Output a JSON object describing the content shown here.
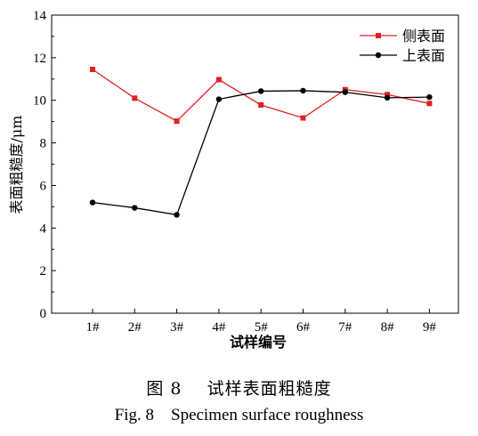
{
  "chart_data": {
    "type": "line",
    "categories": [
      "1#",
      "2#",
      "3#",
      "4#",
      "5#",
      "6#",
      "7#",
      "8#",
      "9#"
    ],
    "series": [
      {
        "name": "侧表面",
        "color": "#e02020",
        "marker": "square",
        "values": [
          11.45,
          10.1,
          9.02,
          10.97,
          9.78,
          9.17,
          10.5,
          10.27,
          9.85
        ]
      },
      {
        "name": "上表面",
        "color": "#000000",
        "marker": "circle",
        "values": [
          5.2,
          4.95,
          4.62,
          10.05,
          10.43,
          10.45,
          10.38,
          10.12,
          10.15
        ]
      }
    ],
    "xlabel": "试样编号",
    "ylabel": "表面粗糙度/μm",
    "ylim": [
      0,
      14
    ],
    "yticks": [
      "0",
      "2",
      "4",
      "6",
      "8",
      "10",
      "12",
      "14"
    ],
    "grid": false,
    "legend_position": "top-right"
  },
  "captions": {
    "cn": "图 8    试样表面粗糙度",
    "en": "Fig. 8    Specimen surface roughness"
  }
}
